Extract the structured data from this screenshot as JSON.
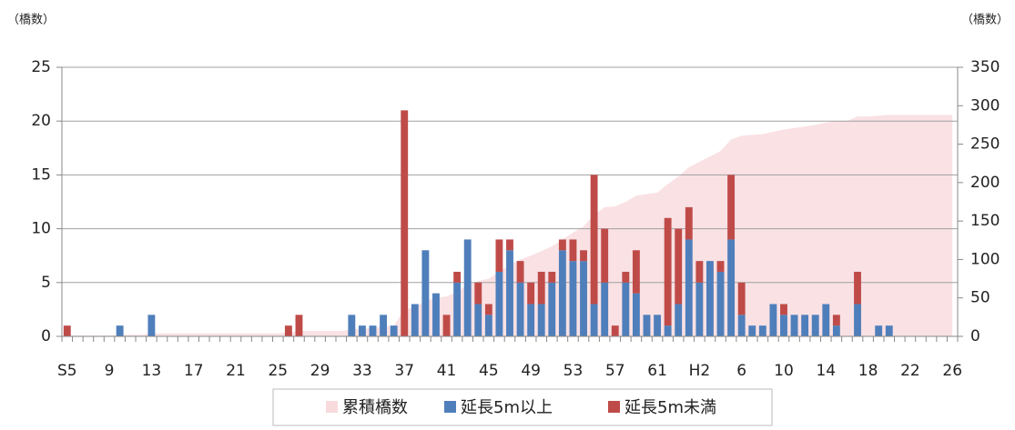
{
  "chart_data": {
    "type": "bar",
    "stacked": true,
    "y_axis_label": "（橋数）",
    "y2_axis_label": "（橋数）",
    "categories": [
      "S5",
      null,
      null,
      null,
      "9",
      null,
      null,
      null,
      "13",
      null,
      null,
      null,
      "17",
      null,
      null,
      null,
      "21",
      null,
      null,
      null,
      "25",
      null,
      null,
      null,
      "29",
      null,
      null,
      null,
      "33",
      null,
      null,
      null,
      "37",
      null,
      null,
      null,
      "41",
      null,
      null,
      null,
      "45",
      null,
      null,
      null,
      "49",
      null,
      null,
      null,
      "53",
      null,
      null,
      null,
      "57",
      null,
      null,
      null,
      "61",
      null,
      null,
      null,
      "H2",
      null,
      null,
      null,
      "6",
      null,
      null,
      null,
      "10",
      null,
      null,
      null,
      "14",
      null,
      null,
      null,
      "18",
      null,
      null,
      null,
      "22",
      null,
      null,
      null,
      "26"
    ],
    "series": [
      {
        "name": "累積橋数",
        "type": "area",
        "axis": "y2",
        "color": "#f8dadd",
        "values": [
          1,
          1,
          1,
          1,
          1,
          2,
          2,
          2,
          4,
          4,
          4,
          4,
          4,
          4,
          4,
          4,
          4,
          4,
          4,
          4,
          4,
          5,
          7,
          7,
          7,
          7,
          7,
          9,
          10,
          11,
          13,
          14,
          35,
          38,
          46,
          50,
          52,
          58,
          67,
          72,
          75,
          84,
          93,
          100,
          105,
          111,
          117,
          126,
          135,
          143,
          158,
          168,
          169,
          175,
          183,
          185,
          187,
          198,
          208,
          220,
          227,
          234,
          241,
          256,
          261,
          262,
          263,
          266,
          269,
          271,
          273,
          275,
          278,
          280,
          280,
          286,
          286,
          287,
          288,
          288,
          288,
          288,
          288,
          288,
          288
        ]
      },
      {
        "name": "延長5m以上",
        "color": "#4f7fbb",
        "values": [
          0,
          0,
          0,
          0,
          0,
          1,
          0,
          0,
          2,
          0,
          0,
          0,
          0,
          0,
          0,
          0,
          0,
          0,
          0,
          0,
          0,
          0,
          0,
          0,
          0,
          0,
          0,
          2,
          1,
          1,
          2,
          1,
          0,
          3,
          8,
          4,
          0,
          5,
          9,
          3,
          2,
          6,
          8,
          5,
          3,
          3,
          5,
          8,
          7,
          7,
          3,
          5,
          0,
          5,
          4,
          2,
          2,
          1,
          3,
          9,
          5,
          7,
          6,
          9,
          2,
          1,
          1,
          3,
          2,
          2,
          2,
          2,
          3,
          1,
          0,
          3,
          0,
          1,
          1,
          0,
          0,
          0,
          0,
          0,
          0
        ]
      },
      {
        "name": "延長5m未満",
        "color": "#bf4b48",
        "values": [
          1,
          0,
          0,
          0,
          0,
          0,
          0,
          0,
          0,
          0,
          0,
          0,
          0,
          0,
          0,
          0,
          0,
          0,
          0,
          0,
          0,
          1,
          2,
          0,
          0,
          0,
          0,
          0,
          0,
          0,
          0,
          0,
          21,
          0,
          0,
          0,
          2,
          1,
          0,
          2,
          1,
          3,
          1,
          2,
          2,
          3,
          1,
          1,
          2,
          1,
          12,
          5,
          1,
          1,
          4,
          0,
          0,
          10,
          7,
          3,
          2,
          0,
          1,
          6,
          3,
          0,
          0,
          0,
          1,
          0,
          0,
          0,
          0,
          1,
          0,
          3,
          0,
          0,
          0,
          0,
          0,
          0,
          0,
          0,
          0
        ]
      }
    ],
    "ylim": [
      0,
      25
    ],
    "yticks": [
      0,
      5,
      10,
      15,
      20,
      25
    ],
    "y2lim": [
      0,
      350
    ],
    "y2ticks": [
      0,
      50,
      100,
      150,
      200,
      250,
      300,
      350
    ],
    "grid": true,
    "legend": "bottom"
  }
}
